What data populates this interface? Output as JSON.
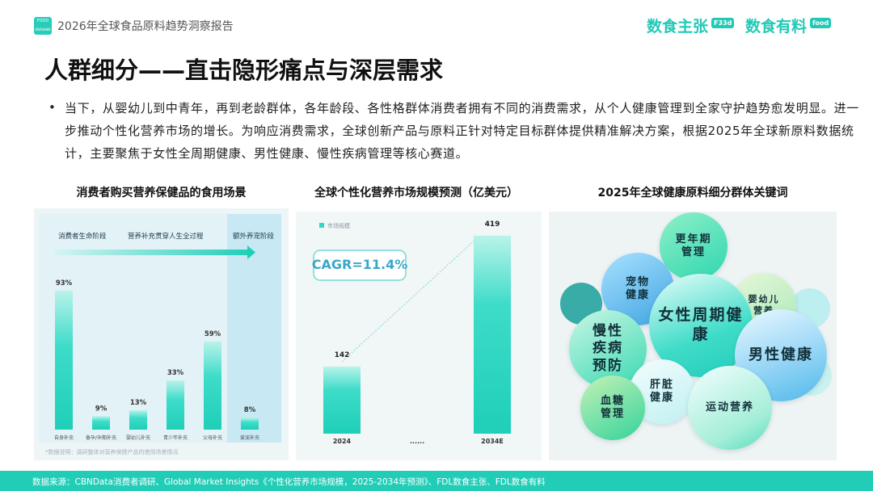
{
  "header": {
    "report_title": "2026年全球食品原料趋势洞察报告",
    "logo_left": "FOOD datalab",
    "brand_1": "数食主张",
    "brand_1_badge": "F33d",
    "brand_2": "数食有料",
    "brand_2_badge": "food"
  },
  "title": "人群细分——直击隐形痛点与深层需求",
  "bullet": "当下，从婴幼儿到中青年，再到老龄群体，各年龄段、各性格群体消费者拥有不同的消费需求，从个人健康管理到全家守护趋势愈发明显。进一步推动个性化营养市场的增长。为响应消费需求，全球创新产品与原料正针对特定目标群体提供精准解决方案，根据2025年全球新原料数据统计，主要聚焦于女性全周期健康、男性健康、慢性疾病管理等核心赛道。",
  "chart_data": [
    {
      "type": "bar",
      "title": "消费者购买营养保健品的食用场景",
      "categories": [
        "自身补充",
        "备孕/孕期补充",
        "婴幼儿补充",
        "青少年补充",
        "父母补充",
        "爱宠补充"
      ],
      "values": [
        93,
        9,
        13,
        33,
        59,
        8
      ],
      "value_labels": [
        "93%",
        "9%",
        "13%",
        "33%",
        "59%",
        "8%"
      ],
      "color": "#2ed8c4",
      "annotations": [
        "消费者生命阶段",
        "营养补充贯穿人生全过程",
        "额外养宠阶段"
      ],
      "note": "*数据说明：调研整体对营养保健产品的使用场景情况"
    },
    {
      "type": "bar",
      "title": "全球个性化营养市场规模预测（亿美元）",
      "categories": [
        "2024",
        "......",
        "2034E"
      ],
      "series": [
        {
          "name": "市场规模",
          "color": "#2ed8c4",
          "values": [
            142,
            null,
            419
          ]
        }
      ],
      "annotation": "CAGR=11.4%"
    }
  ],
  "keywords": {
    "title": "2025年全球健康原料细分群体关键词",
    "items": [
      "更年期管理",
      "宠物健康",
      "婴幼儿营养",
      "女性周期健康",
      "慢性疾病预防",
      "男性健康",
      "肝脏健康",
      "血糖管理",
      "运动营养"
    ]
  },
  "footer": "数据来源：CBNData消费者调研、Global Market Insights《个性化营养市场规模，2025-2034年预测》、FDL数食主张、FDL数食有料"
}
